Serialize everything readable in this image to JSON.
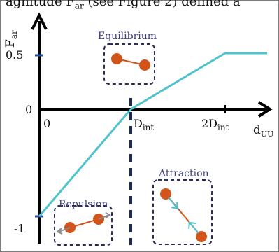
{
  "figure": {
    "caption_fragment": "agnitude F",
    "caption_sub": "ar",
    "caption_tail": " (see Figure 2) defined a"
  },
  "axes": {
    "y_label_main": "F",
    "y_label_sub": "ar",
    "x_label_main": "d",
    "x_label_sub": "UU",
    "y_ticks": {
      "top": "0.5",
      "mid": "0",
      "bottom": "-1"
    },
    "x_ticks": {
      "zero": "0",
      "d_int_main": "D",
      "d_int_sub": "int",
      "two_d_int_main": "2D",
      "two_d_int_sub": "int"
    }
  },
  "boxes": {
    "equilibrium": "Equilibrium",
    "attraction": "Attraction",
    "repulsion": "Repulsion"
  },
  "colors": {
    "curve": "#4ec3cc",
    "axis": "#000000",
    "dashed": "#1f2a5a",
    "particle": "#d3541a",
    "link": "#d3541a",
    "box_border": "#2b2b5a",
    "arrow_attraction": "#4ec3cc",
    "arrow_repulsion": "#8a8a8a"
  }
}
